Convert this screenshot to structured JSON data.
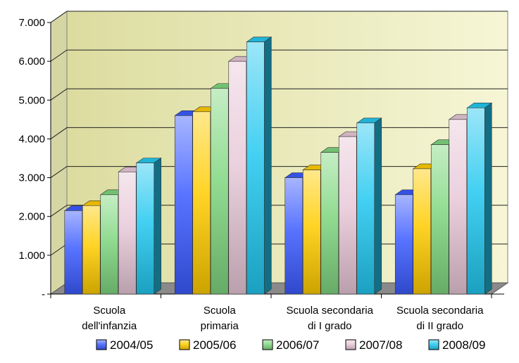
{
  "chart_data": {
    "type": "bar",
    "style": "3d-clustered-column",
    "categories": [
      [
        "Scuola",
        "dell'infanzia"
      ],
      [
        "Scuola",
        "primaria"
      ],
      [
        "Scuola secondaria",
        "di I grado"
      ],
      [
        "Scuola secondaria",
        "di II grado"
      ]
    ],
    "series": [
      {
        "name": "2004/05",
        "color": "#3b5bff",
        "values": [
          2150,
          4600,
          3000,
          2560
        ]
      },
      {
        "name": "2005/06",
        "color": "#ffcc00",
        "values": [
          2280,
          4700,
          3200,
          3230
        ]
      },
      {
        "name": "2006/07",
        "color": "#7fd67f",
        "values": [
          2560,
          5300,
          3650,
          3850
        ]
      },
      {
        "name": "2007/08",
        "color": "#e8c8d8",
        "values": [
          3150,
          6000,
          4060,
          4500
        ]
      },
      {
        "name": "2008/09",
        "color": "#22c8f0",
        "values": [
          3380,
          6500,
          4410,
          4800
        ]
      }
    ],
    "yticks": [
      "-",
      "1.000",
      "2.000",
      "3.000",
      "4.000",
      "5.000",
      "6.000",
      "7.000"
    ],
    "ylim": [
      0,
      7000
    ],
    "grid": true,
    "legend_position": "bottom",
    "wall_color": "#ededbb",
    "floor_color": "#8a8a8a"
  }
}
